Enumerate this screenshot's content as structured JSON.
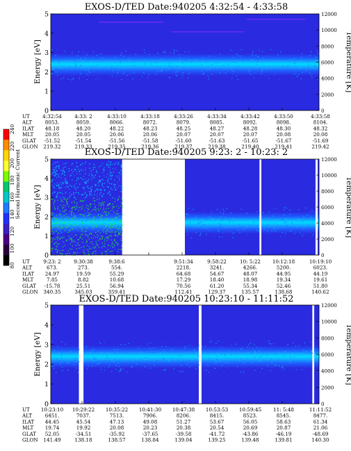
{
  "colorbar": {
    "label": "Second Harmonic Current",
    "ticks": [
      "240",
      "220",
      "200",
      "180",
      "160",
      "140",
      "120",
      "100",
      "80"
    ],
    "colors": [
      "#ff0000",
      "#ff8c00",
      "#ffd700",
      "#ffff33",
      "#7cfc00",
      "#00c86e",
      "#00c8c8",
      "#1e7bff",
      "#2030ff",
      "#3820c8",
      "#4b0082",
      "#2a0040",
      "#000000"
    ]
  },
  "panel_colors": {
    "background": "#2a2ae0",
    "band_core": "#00ddff",
    "band_mid": "#14a0ff",
    "band_outer": "#1e5cff",
    "noise": "#20e040",
    "hot": "#7a2cff"
  },
  "chart_data": [
    {
      "type": "heatmap",
      "title": "EXOS-D/TED   Date:940205   4:32:54 - 4:33:58",
      "ylabel": "Energy [eV]",
      "y2label": "Temperature [K]",
      "ylim": [
        0,
        5
      ],
      "y_ticks": [
        "0",
        "1",
        "2",
        "3",
        "4",
        "5"
      ],
      "y2lim": [
        0,
        12000
      ],
      "y2_ticks": [
        "0",
        "2000",
        "4000",
        "6000",
        "8000",
        "10000",
        "12000"
      ],
      "segments": [
        [
          0,
          1
        ]
      ],
      "band_center_ev": 2.4,
      "table": {
        "row_labels": [
          "UT",
          "ALT",
          "ILAT",
          "MLT",
          "GLAT",
          "GLON"
        ],
        "columns": [
          [
            "4:32:54",
            "8053.",
            "48.18",
            "20.05",
            "-51.52",
            "219.32"
          ],
          [
            "4:33: 2",
            "8059.",
            "48.20",
            "20.05",
            "-51.54",
            "219.33"
          ],
          [
            "4:33:10",
            "8066.",
            "48.22",
            "20.06",
            "-51.56",
            "219.35"
          ],
          [
            "4:33:18",
            "8072.",
            "48.23",
            "20.06",
            "-51.58",
            "219.36"
          ],
          [
            "4:33:26",
            "8079.",
            "48.25",
            "20.07",
            "-51.60",
            "219.37"
          ],
          [
            "4:33:34",
            "8085.",
            "48.27",
            "20.07",
            "-51.63",
            "219.38"
          ],
          [
            "4:33:42",
            "8092.",
            "48.28",
            "20.07",
            "-51.65",
            "219.40"
          ],
          [
            "4:33:50",
            "8098.",
            "48.30",
            "20.08",
            "-51.67",
            "219.41"
          ],
          [
            "4:33:58",
            "8104.",
            "48.32",
            "20.08",
            "-51.69",
            "219.42"
          ]
        ]
      }
    },
    {
      "type": "heatmap",
      "title": "EXOS-D/TED   Date:940205   9:23: 2 - 10:23: 2",
      "ylabel": "Energy [eV]",
      "y2label": "Temperature [K]",
      "ylim": [
        0,
        5
      ],
      "y_ticks": [
        "0",
        "1",
        "2",
        "3",
        "4",
        "5"
      ],
      "y2lim": [
        0,
        12000
      ],
      "y2_ticks": [
        "0",
        "2000",
        "4000",
        "6000",
        "8000",
        "10000",
        "12000"
      ],
      "segments": [
        [
          0,
          0.266
        ],
        [
          0.5,
          0.778
        ],
        [
          0.785,
          0.987
        ],
        [
          0.995,
          1
        ]
      ],
      "band_center_ev": 1.7,
      "table": {
        "row_labels": [
          "UT",
          "ALT",
          "ILAT",
          "MLT",
          "GLAT",
          "GLON"
        ],
        "columns": [
          [
            "9:23: 2",
            "673.",
            "24.97",
            "7.85",
            "-15.78",
            "340.35"
          ],
          [
            "9:30:38",
            "273.",
            "19.59",
            "8.82",
            "25.51",
            "345.03"
          ],
          [
            "9:38:6",
            "554.",
            "55.29",
            "10.68",
            "56.94",
            "359.41"
          ],
          [
            "",
            "",
            "",
            "",
            "",
            ""
          ],
          [
            "9:51:34",
            "2218.",
            "64.68",
            "17.29",
            "70.56",
            "112.41"
          ],
          [
            "9:58:22",
            "3241.",
            "54.67",
            "18.40",
            "61.20",
            "129.37"
          ],
          [
            "10: 5:22",
            "4266.",
            "48.07",
            "18.98",
            "55.34",
            "135.57"
          ],
          [
            "10:12:18",
            "5200.",
            "44.95",
            "19.34",
            "52.46",
            "138.68"
          ],
          [
            "10:19:10",
            "6023.",
            "44.19",
            "19.61",
            "51.80",
            "140.62"
          ]
        ]
      }
    },
    {
      "type": "heatmap",
      "title": "EXOS-D/TED   Date:940205   10:23:10 - 11:11:52",
      "ylabel": "Energy [eV]",
      "y2label": "Temperature [K]",
      "ylim": [
        0,
        5
      ],
      "y_ticks": [
        "0",
        "1",
        "2",
        "3",
        "4",
        "5"
      ],
      "y2lim": [
        0,
        12000
      ],
      "y2_ticks": [
        "0",
        "2000",
        "4000",
        "6000",
        "8000",
        "10000",
        "12000"
      ],
      "segments": [
        [
          0,
          0.105
        ],
        [
          0.122,
          0.552
        ],
        [
          0.562,
          0.975
        ],
        [
          0.982,
          1
        ]
      ],
      "band_center_ev": 2.4,
      "table": {
        "row_labels": [
          "UT",
          "ALT",
          "ILAT",
          "MLT",
          "GLAT",
          "GLON"
        ],
        "columns": [
          [
            "10:23:10",
            "6451.",
            "44.45",
            "19.74",
            "52.05",
            "141.49"
          ],
          [
            "10:29:22",
            "7037.",
            "45.54",
            "19.92",
            "-34.51",
            "138.18"
          ],
          [
            "10:35:22",
            "7513.",
            "47.13",
            "20.08",
            "-35.92",
            "138.57"
          ],
          [
            "10:41:30",
            "7906.",
            "49.08",
            "20.23",
            "-37.65",
            "138.84"
          ],
          [
            "10:47:38",
            "8206.",
            "51.27",
            "20.38",
            "-39.58",
            "139.04"
          ],
          [
            "10:53:53",
            "8415.",
            "53.67",
            "20.54",
            "-41.72",
            "139.25"
          ],
          [
            "10:59:45",
            "8523.",
            "56.05",
            "20.69",
            "-43.86",
            "139.48"
          ],
          [
            "11: 5:48",
            "8545.",
            "58.63",
            "20.87",
            "-46.19",
            "139.81"
          ],
          [
            "11:11:52",
            "8477.",
            "61.34",
            "21.06",
            "-48.69",
            "140.30"
          ]
        ]
      }
    }
  ]
}
